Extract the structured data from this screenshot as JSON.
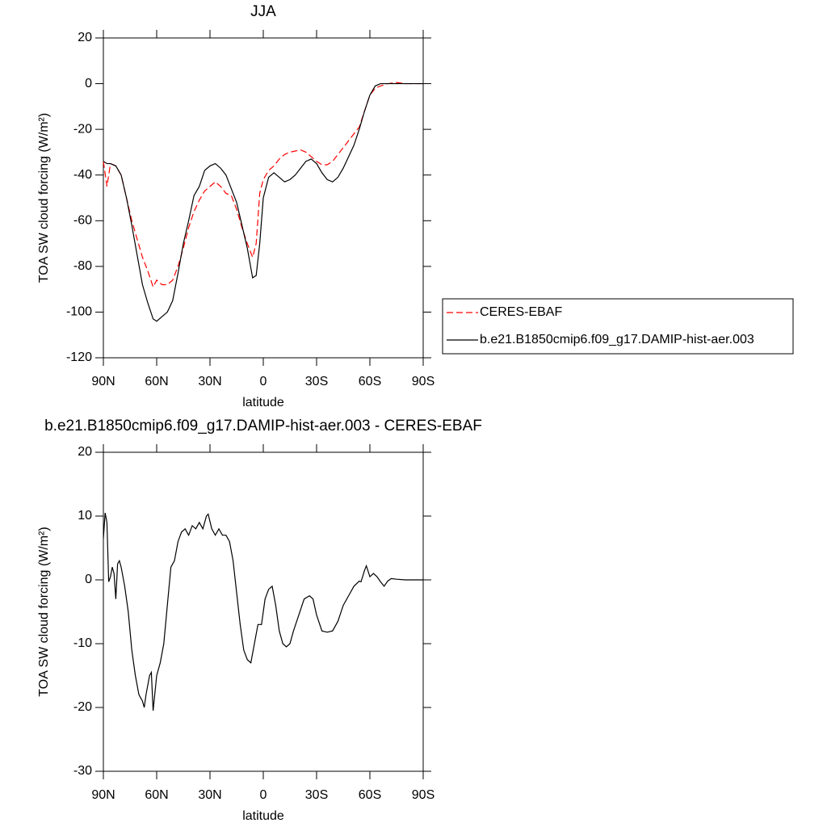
{
  "chart_data": [
    {
      "type": "line",
      "title": "JJA",
      "xlabel": "latitude",
      "ylabel": "TOA SW cloud forcing (W/m²)",
      "xlim": [
        90,
        -90
      ],
      "xticks": [
        {
          "value": 90,
          "label": "90N"
        },
        {
          "value": 60,
          "label": "60N"
        },
        {
          "value": 30,
          "label": "30N"
        },
        0,
        {
          "value": -30,
          "label": "30S"
        },
        {
          "value": -60,
          "label": "60S"
        },
        {
          "value": -90,
          "label": "90S"
        }
      ],
      "ylim": [
        -120,
        20
      ],
      "yticks": [
        -120,
        -100,
        -80,
        -60,
        -40,
        -20,
        0,
        20
      ],
      "legend": "right",
      "x": [
        90,
        88,
        86,
        83,
        80,
        77,
        74,
        71,
        68,
        65,
        62,
        60,
        57,
        54,
        51,
        48,
        45,
        42,
        39,
        36,
        33,
        30,
        27,
        24,
        21,
        18,
        15,
        12,
        9,
        6,
        4,
        2,
        0,
        -3,
        -6,
        -9,
        -12,
        -15,
        -18,
        -21,
        -24,
        -27,
        -30,
        -33,
        -36,
        -39,
        -42,
        -45,
        -48,
        -51,
        -54,
        -57,
        -60,
        -63,
        -66,
        -70,
        -75,
        -80,
        -85,
        -90
      ],
      "series": [
        {
          "name": "CERES-EBAF",
          "color": "#ff0000",
          "dash": true,
          "values": [
            -34,
            -45,
            -35,
            -36,
            -40,
            -50,
            -60,
            -68,
            -76,
            -82,
            -89,
            -86,
            -88,
            -88,
            -86,
            -80,
            -72,
            -63,
            -56,
            -51,
            -47,
            -45,
            -43,
            -45,
            -48,
            -49,
            -55,
            -63,
            -70,
            -76,
            -70,
            -48,
            -42,
            -38,
            -36,
            -33,
            -31,
            -30,
            -29.5,
            -29,
            -30,
            -32,
            -34,
            -35.5,
            -35.5,
            -34,
            -31,
            -28,
            -25,
            -22,
            -19,
            -12,
            -5,
            -2,
            -1,
            0,
            0.5,
            0,
            0,
            0
          ]
        },
        {
          "name": "b.e21.B1850cmip6.f09_g17.DAMIP-hist-aer.003",
          "color": "#000000",
          "dash": false,
          "values": [
            -34,
            -35,
            -35,
            -36,
            -40,
            -50,
            -62,
            -75,
            -88,
            -96,
            -103,
            -104,
            -102,
            -100,
            -95,
            -83,
            -70,
            -60,
            -49,
            -45,
            -38,
            -36,
            -35,
            -37,
            -40,
            -46,
            -52,
            -62,
            -72,
            -85,
            -84,
            -70,
            -50,
            -41,
            -39,
            -41,
            -43,
            -42,
            -40,
            -37,
            -34,
            -33,
            -35,
            -39,
            -42,
            -43,
            -41,
            -37,
            -32,
            -27,
            -20,
            -12,
            -5,
            -1,
            0,
            0,
            0,
            0,
            0,
            0
          ]
        }
      ]
    },
    {
      "type": "line",
      "title": "b.e21.B1850cmip6.f09_g17.DAMIP-hist-aer.003 - CERES-EBAF",
      "xlabel": "latitude",
      "ylabel": "TOA SW cloud forcing (W/m²)",
      "xlim": [
        90,
        -90
      ],
      "xticks": [
        {
          "value": 90,
          "label": "90N"
        },
        {
          "value": 60,
          "label": "60N"
        },
        {
          "value": 30,
          "label": "30N"
        },
        0,
        {
          "value": -30,
          "label": "30S"
        },
        {
          "value": -60,
          "label": "60S"
        },
        {
          "value": -90,
          "label": "90S"
        }
      ],
      "ylim": [
        -30,
        20
      ],
      "yticks": [
        -30,
        -20,
        -10,
        0,
        10,
        20
      ],
      "x": [
        90,
        89,
        88,
        87,
        86,
        85,
        84,
        83,
        82,
        81,
        80,
        78,
        76,
        74,
        72,
        70,
        68,
        67,
        66,
        64,
        63,
        62,
        60,
        58,
        56,
        54,
        52,
        50,
        48,
        46,
        44,
        42,
        40,
        38,
        36,
        34,
        32,
        31,
        29,
        27,
        25,
        23,
        21,
        19,
        17,
        15,
        13,
        11,
        9,
        7,
        5,
        3,
        1,
        -1,
        -3,
        -5,
        -7,
        -9,
        -11,
        -13,
        -15,
        -17,
        -20,
        -23,
        -26,
        -28,
        -30,
        -33,
        -36,
        -39,
        -42,
        -45,
        -48,
        -51,
        -54,
        -55,
        -57,
        -58,
        -60,
        -62,
        -64,
        -66,
        -68,
        -70,
        -72,
        -75,
        -80,
        -85,
        -90
      ],
      "series": [
        {
          "color": "#000000",
          "dash": false,
          "values": [
            6.5,
            10.5,
            9,
            -0.3,
            0.5,
            2,
            1,
            -3,
            2.5,
            3,
            2,
            -1,
            -5,
            -11,
            -15,
            -18,
            -19,
            -20,
            -18,
            -15,
            -14.5,
            -20.5,
            -15,
            -13,
            -10,
            -4,
            2,
            3,
            6,
            7.5,
            8,
            7,
            8.5,
            8,
            9,
            8,
            10,
            10.3,
            8,
            7,
            8,
            7,
            7,
            6,
            3,
            -2,
            -7,
            -11,
            -12.5,
            -13,
            -10,
            -7,
            -7,
            -3,
            -1.5,
            -1,
            -4,
            -8,
            -10,
            -10.5,
            -10,
            -8,
            -5.5,
            -3,
            -2.5,
            -3,
            -5.5,
            -8,
            -8.2,
            -8,
            -6.5,
            -4,
            -2.5,
            -1,
            -0.2,
            -0.3,
            1.5,
            2.2,
            0.5,
            1,
            0.5,
            -0.3,
            -1,
            -0.2,
            0.2,
            0.1,
            0,
            0,
            0
          ]
        }
      ]
    }
  ]
}
